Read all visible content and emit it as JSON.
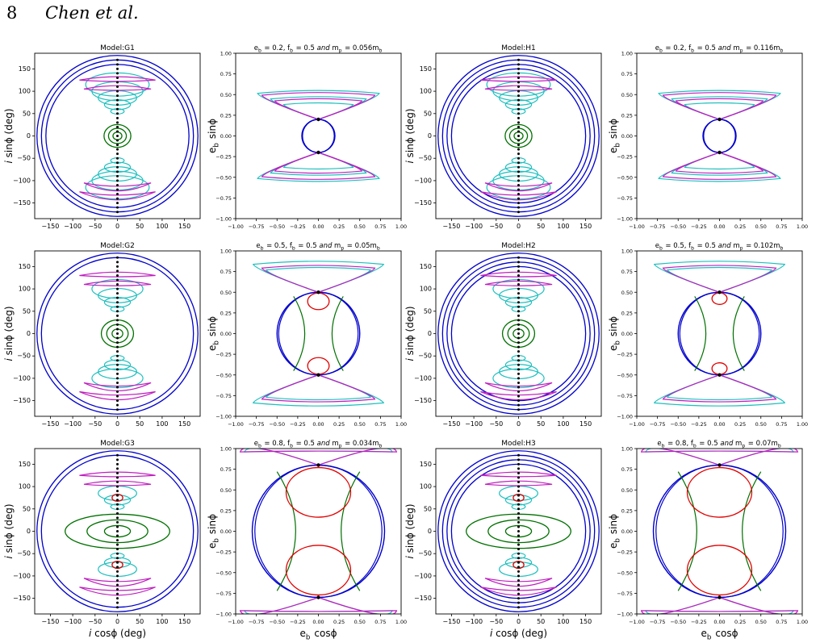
{
  "page_header": {
    "page_number": "8",
    "authors": "Chen et al."
  },
  "colors": {
    "green": "#007000",
    "blue": "#0000cc",
    "cyan": "#1fbfbf",
    "magenta": "#bf1fbf",
    "red": "#e00000",
    "black": "#000000"
  },
  "chart_data": [
    {
      "type": "scatter",
      "title": "Model:G1",
      "xlabel": "",
      "ylabel": "i sinϕ (deg)",
      "xlim": [
        -185,
        185
      ],
      "ylim": [
        -185,
        185
      ],
      "xticks": [
        "−150",
        "−100",
        "−50",
        "0",
        "50",
        "100",
        "150"
      ],
      "yticks": [
        "150",
        "100",
        "50",
        "0",
        "−50",
        "−100",
        "−150"
      ],
      "series": [
        {
          "color": "green",
          "values": [
            10,
            20,
            30
          ]
        },
        {
          "color": "cyan",
          "values": [
            60,
            75,
            90,
            105,
            120
          ]
        },
        {
          "color": "magenta",
          "values": [
            110,
            130
          ]
        },
        {
          "color": "blue",
          "values": [
            160,
            170,
            180
          ]
        }
      ]
    },
    {
      "type": "scatter",
      "title": "e_b = 0.2, f_b = 0.5 and m_p = 0.056m_b",
      "xlabel": "",
      "ylabel": "e_b sinϕ",
      "xlim": [
        -1,
        1
      ],
      "ylim": [
        -1,
        1
      ],
      "xticks": [
        "−1.00",
        "−0.75",
        "−0.50",
        "−0.25",
        "0.00",
        "0.25",
        "0.50",
        "0.75",
        "1.00"
      ],
      "yticks": [
        "1.00",
        "0.75",
        "0.50",
        "0.25",
        "0.00",
        "−0.25",
        "−0.50",
        "−0.75",
        "−1.00"
      ],
      "series": [
        {
          "color": "blue",
          "values": [
            0.2
          ]
        },
        {
          "color": "cyan",
          "values": [
            0.4,
            0.55,
            0.7
          ]
        },
        {
          "color": "magenta",
          "values": [
            0.5,
            0.65
          ]
        }
      ]
    },
    {
      "type": "scatter",
      "title": "Model:H1",
      "xlabel": "",
      "ylabel": "i sinϕ (deg)",
      "xlim": [
        -185,
        185
      ],
      "ylim": [
        -185,
        185
      ],
      "xticks": [
        "−150",
        "−100",
        "−50",
        "0",
        "50",
        "100",
        "150"
      ],
      "yticks": [
        "150",
        "100",
        "50",
        "0",
        "−50",
        "−100",
        "−150"
      ],
      "series": [
        {
          "color": "green",
          "values": [
            10,
            20,
            30
          ]
        },
        {
          "color": "cyan",
          "values": [
            60,
            75,
            90,
            105,
            120
          ]
        },
        {
          "color": "magenta",
          "values": [
            110,
            130
          ]
        },
        {
          "color": "blue",
          "values": [
            150,
            160,
            170,
            180
          ]
        }
      ]
    },
    {
      "type": "scatter",
      "title": "e_b = 0.2, f_b = 0.5 and m_p = 0.116m_b",
      "xlabel": "",
      "ylabel": "e_b sinϕ",
      "xlim": [
        -1,
        1
      ],
      "ylim": [
        -1,
        1
      ],
      "xticks": [
        "−1.00",
        "−0.75",
        "−0.50",
        "−0.25",
        "0.00",
        "0.25",
        "0.50",
        "0.75",
        "1.00"
      ],
      "yticks": [
        "1.00",
        "0.75",
        "0.50",
        "0.25",
        "0.00",
        "−0.25",
        "−0.50",
        "−0.75",
        "−1.00"
      ],
      "series": [
        {
          "color": "blue",
          "values": [
            0.2
          ]
        },
        {
          "color": "cyan",
          "values": [
            0.4,
            0.55,
            0.7
          ]
        },
        {
          "color": "magenta",
          "values": [
            0.5,
            0.65
          ]
        }
      ]
    },
    {
      "type": "scatter",
      "title": "Model:G2",
      "xlabel": "",
      "ylabel": "i sinϕ (deg)",
      "xlim": [
        -185,
        185
      ],
      "ylim": [
        -185,
        185
      ],
      "xticks": [
        "−150",
        "−100",
        "−50",
        "0",
        "50",
        "100",
        "150"
      ],
      "yticks": [
        "150",
        "100",
        "50",
        "0",
        "−50",
        "−100",
        "−150"
      ],
      "series": [
        {
          "color": "green",
          "values": [
            12,
            24,
            36
          ]
        },
        {
          "color": "cyan",
          "values": [
            60,
            75,
            90,
            105
          ]
        },
        {
          "color": "magenta",
          "values": [
            115,
            135
          ]
        },
        {
          "color": "blue",
          "values": [
            170,
            180
          ]
        }
      ]
    },
    {
      "type": "scatter",
      "title": "e_b = 0.5, f_b = 0.5 and m_p = 0.05m_b",
      "xlabel": "",
      "ylabel": "e_b sinϕ",
      "xlim": [
        -1,
        1
      ],
      "ylim": [
        -1,
        1
      ],
      "xticks": [
        "−1.00",
        "−0.75",
        "−0.50",
        "−0.25",
        "0.00",
        "0.25",
        "0.50",
        "0.75",
        "1.00"
      ],
      "yticks": [
        "1.00",
        "0.75",
        "0.50",
        "0.25",
        "0.00",
        "−0.25",
        "−0.50",
        "−0.75",
        "−1.00"
      ],
      "series": [
        {
          "color": "blue",
          "values": [
            0.5
          ]
        },
        {
          "color": "green",
          "values": [
            0.3
          ]
        },
        {
          "color": "red",
          "values": [
            0.1
          ]
        },
        {
          "color": "cyan",
          "values": [
            0.6,
            0.75
          ]
        },
        {
          "color": "magenta",
          "values": [
            0.65
          ]
        }
      ]
    },
    {
      "type": "scatter",
      "title": "Model:H2",
      "xlabel": "",
      "ylabel": "i sinϕ (deg)",
      "xlim": [
        -185,
        185
      ],
      "ylim": [
        -185,
        185
      ],
      "xticks": [
        "−150",
        "−100",
        "−50",
        "0",
        "50",
        "100",
        "150"
      ],
      "yticks": [
        "150",
        "100",
        "50",
        "0",
        "−50",
        "−100",
        "−150"
      ],
      "series": [
        {
          "color": "green",
          "values": [
            12,
            24,
            36
          ]
        },
        {
          "color": "cyan",
          "values": [
            60,
            75,
            90,
            105
          ]
        },
        {
          "color": "magenta",
          "values": [
            115,
            135
          ]
        },
        {
          "color": "blue",
          "values": [
            150,
            160,
            170,
            180
          ]
        }
      ]
    },
    {
      "type": "scatter",
      "title": "e_b = 0.5, f_b = 0.5 and m_p = 0.102m_b",
      "xlabel": "",
      "ylabel": "e_b sinϕ",
      "xlim": [
        -1,
        1
      ],
      "ylim": [
        -1,
        1
      ],
      "xticks": [
        "−1.00",
        "−0.75",
        "−0.50",
        "−0.25",
        "0.00",
        "0.25",
        "0.50",
        "0.75",
        "1.00"
      ],
      "yticks": [
        "1.00",
        "0.75",
        "0.50",
        "0.25",
        "0.00",
        "−0.25",
        "−0.50",
        "−0.75",
        "−1.00"
      ],
      "series": [
        {
          "color": "blue",
          "values": [
            0.5
          ]
        },
        {
          "color": "green",
          "values": [
            0.3
          ]
        },
        {
          "color": "red",
          "values": [
            0.07
          ]
        },
        {
          "color": "cyan",
          "values": [
            0.6,
            0.75
          ]
        },
        {
          "color": "magenta",
          "values": [
            0.65
          ]
        }
      ]
    },
    {
      "type": "scatter",
      "title": "Model:G3",
      "xlabel": "i cosϕ (deg)",
      "ylabel": "i sinϕ (deg)",
      "xlim": [
        -185,
        185
      ],
      "ylim": [
        -185,
        185
      ],
      "xticks": [
        "−150",
        "−100",
        "−50",
        "0",
        "50",
        "100",
        "150"
      ],
      "yticks": [
        "150",
        "100",
        "50",
        "0",
        "−50",
        "−100",
        "−150"
      ],
      "series": [
        {
          "color": "green",
          "values": [
            15,
            30,
            45
          ]
        },
        {
          "color": "cyan",
          "values": [
            60,
            75,
            90
          ]
        },
        {
          "color": "red",
          "values": [
            75
          ]
        },
        {
          "color": "magenta",
          "values": [
            110,
            130
          ]
        },
        {
          "color": "blue",
          "values": [
            170,
            180
          ]
        }
      ]
    },
    {
      "type": "scatter",
      "title": "e_b = 0.8, f_b = 0.5 and m_p = 0.034m_b",
      "xlabel": "e_b cosϕ",
      "ylabel": "e_b sinϕ",
      "xlim": [
        -1,
        1
      ],
      "ylim": [
        -1,
        1
      ],
      "xticks": [
        "−1.00",
        "−0.75",
        "−0.50",
        "−0.25",
        "0.00",
        "0.25",
        "0.50",
        "0.75",
        "1.00"
      ],
      "yticks": [
        "1.00",
        "0.75",
        "0.50",
        "0.25",
        "0.00",
        "−0.25",
        "−0.50",
        "−0.75",
        "−1.00"
      ],
      "series": [
        {
          "color": "blue",
          "values": [
            0.8
          ]
        },
        {
          "color": "green",
          "values": [
            0.5
          ]
        },
        {
          "color": "red",
          "values": [
            0.3
          ]
        },
        {
          "color": "cyan",
          "values": [
            0.85
          ]
        },
        {
          "color": "magenta",
          "values": [
            0.9
          ]
        }
      ]
    },
    {
      "type": "scatter",
      "title": "Model:H3",
      "xlabel": "i cosϕ (deg)",
      "ylabel": "i sinϕ (deg)",
      "xlim": [
        -185,
        185
      ],
      "ylim": [
        -185,
        185
      ],
      "xticks": [
        "−150",
        "−100",
        "−50",
        "0",
        "50",
        "100",
        "150"
      ],
      "yticks": [
        "150",
        "100",
        "50",
        "0",
        "−50",
        "−100",
        "−150"
      ],
      "series": [
        {
          "color": "green",
          "values": [
            15,
            30,
            45
          ]
        },
        {
          "color": "cyan",
          "values": [
            60,
            75,
            90
          ]
        },
        {
          "color": "red",
          "values": [
            75
          ]
        },
        {
          "color": "magenta",
          "values": [
            110,
            130
          ]
        },
        {
          "color": "blue",
          "values": [
            150,
            160,
            170,
            180
          ]
        }
      ]
    },
    {
      "type": "scatter",
      "title": "e_b = 0.8, f_b = 0.5 and m_p = 0.07m_b",
      "xlabel": "e_b cosϕ",
      "ylabel": "e_b sinϕ",
      "xlim": [
        -1,
        1
      ],
      "ylim": [
        -1,
        1
      ],
      "xticks": [
        "−1.00",
        "−0.75",
        "−0.50",
        "−0.25",
        "0.00",
        "0.25",
        "0.50",
        "0.75",
        "1.00"
      ],
      "yticks": [
        "1.00",
        "0.75",
        "0.50",
        "0.25",
        "0.00",
        "−0.25",
        "−0.50",
        "−0.75",
        "−1.00"
      ],
      "series": [
        {
          "color": "blue",
          "values": [
            0.8
          ]
        },
        {
          "color": "green",
          "values": [
            0.5
          ]
        },
        {
          "color": "red",
          "values": [
            0.3
          ]
        },
        {
          "color": "cyan",
          "values": [
            0.85
          ]
        },
        {
          "color": "magenta",
          "values": [
            0.9
          ]
        }
      ]
    }
  ]
}
